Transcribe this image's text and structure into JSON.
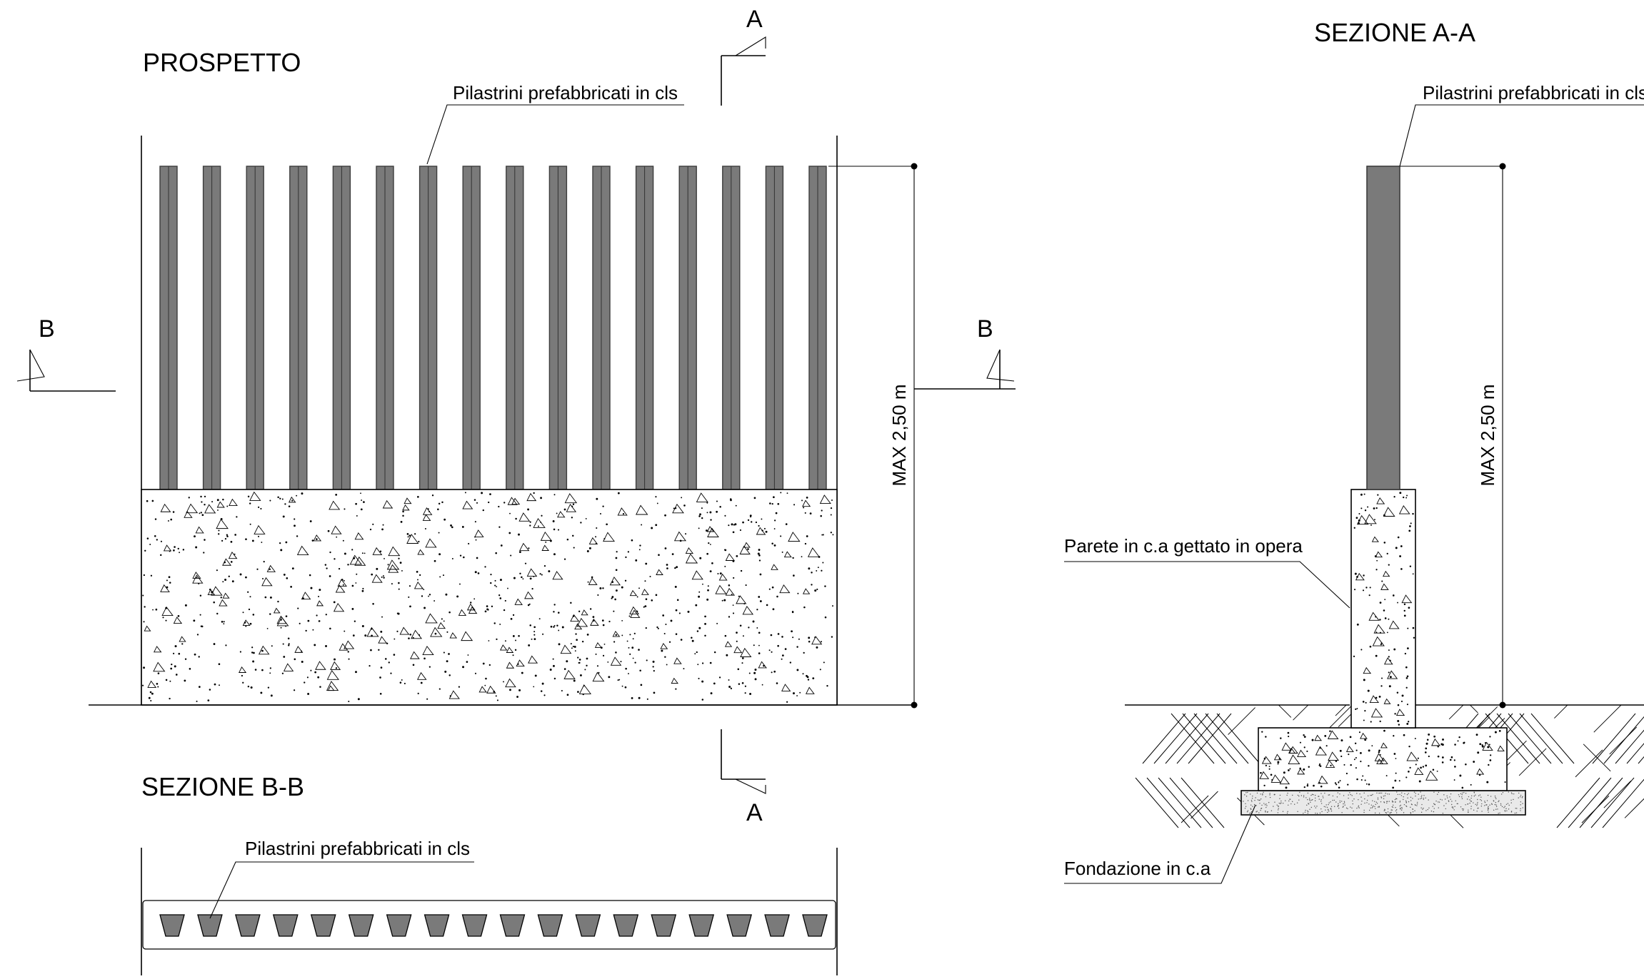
{
  "views": {
    "prospetto": {
      "title": "PROSPETTO"
    },
    "sezione_bb": {
      "title": "SEZIONE B-B"
    },
    "sezione_aa": {
      "title": "SEZIONE A-A"
    }
  },
  "labels": {
    "pilastrini": "Pilastrini prefabbricati in cls",
    "parete": "Parete in c.a gettato in opera",
    "fondazione": "Fondazione in c.a"
  },
  "dimensions": {
    "height": "MAX 2,50 m"
  },
  "section_marks": {
    "a": "A",
    "b": "B"
  },
  "elements": {
    "post_count": 16,
    "section_post_count": 18
  },
  "colors": {
    "post_fill": "#7a7a7a",
    "post_edge": "#3c3c3c",
    "foundation_fill": "#e9e9e9"
  }
}
